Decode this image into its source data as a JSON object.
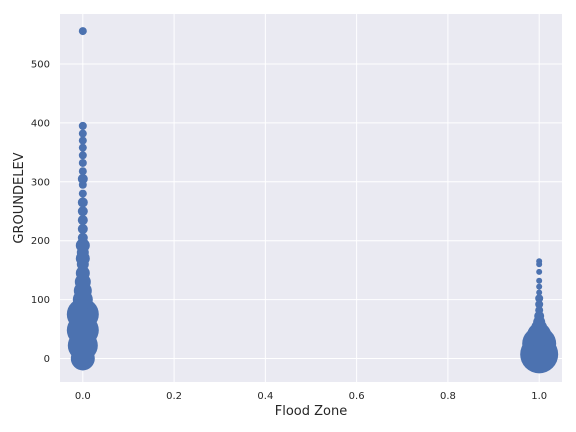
{
  "chart_data": {
    "type": "scatter",
    "xlabel": "Flood Zone",
    "ylabel": "GROUNDELEV",
    "xlim": [
      -0.05,
      1.05
    ],
    "ylim": [
      -40,
      585
    ],
    "xticks": [
      "0.0",
      "0.2",
      "0.4",
      "0.6",
      "0.8",
      "1.0"
    ],
    "yticks": [
      "0",
      "100",
      "200",
      "300",
      "400",
      "500"
    ],
    "grid": true,
    "background_color": "#eaeaf2",
    "marker_color": "#4c72b0",
    "bubble_size_encoded": true,
    "series": [
      {
        "x": 0.0,
        "points": [
          {
            "y": 0,
            "size": 12
          },
          {
            "y": 22,
            "size": 15
          },
          {
            "y": 48,
            "size": 16
          },
          {
            "y": 75,
            "size": 16
          },
          {
            "y": 100,
            "size": 10
          },
          {
            "y": 115,
            "size": 9
          },
          {
            "y": 130,
            "size": 8
          },
          {
            "y": 145,
            "size": 7
          },
          {
            "y": 160,
            "size": 6
          },
          {
            "y": 170,
            "size": 7
          },
          {
            "y": 180,
            "size": 6
          },
          {
            "y": 192,
            "size": 7
          },
          {
            "y": 205,
            "size": 5
          },
          {
            "y": 220,
            "size": 5
          },
          {
            "y": 235,
            "size": 5
          },
          {
            "y": 250,
            "size": 5
          },
          {
            "y": 265,
            "size": 5
          },
          {
            "y": 280,
            "size": 4
          },
          {
            "y": 295,
            "size": 4
          },
          {
            "y": 305,
            "size": 5
          },
          {
            "y": 318,
            "size": 4
          },
          {
            "y": 332,
            "size": 4
          },
          {
            "y": 345,
            "size": 4
          },
          {
            "y": 358,
            "size": 4
          },
          {
            "y": 370,
            "size": 4
          },
          {
            "y": 382,
            "size": 4
          },
          {
            "y": 395,
            "size": 4
          },
          {
            "y": 556,
            "size": 4
          }
        ]
      },
      {
        "x": 1.0,
        "points": [
          {
            "y": 7,
            "size": 19
          },
          {
            "y": 25,
            "size": 17
          },
          {
            "y": 40,
            "size": 12
          },
          {
            "y": 52,
            "size": 8
          },
          {
            "y": 62,
            "size": 6
          },
          {
            "y": 72,
            "size": 5
          },
          {
            "y": 82,
            "size": 4
          },
          {
            "y": 92,
            "size": 4
          },
          {
            "y": 102,
            "size": 4
          },
          {
            "y": 112,
            "size": 3
          },
          {
            "y": 122,
            "size": 3
          },
          {
            "y": 132,
            "size": 3
          },
          {
            "y": 147,
            "size": 3
          },
          {
            "y": 160,
            "size": 3
          },
          {
            "y": 165,
            "size": 3
          }
        ]
      }
    ]
  }
}
